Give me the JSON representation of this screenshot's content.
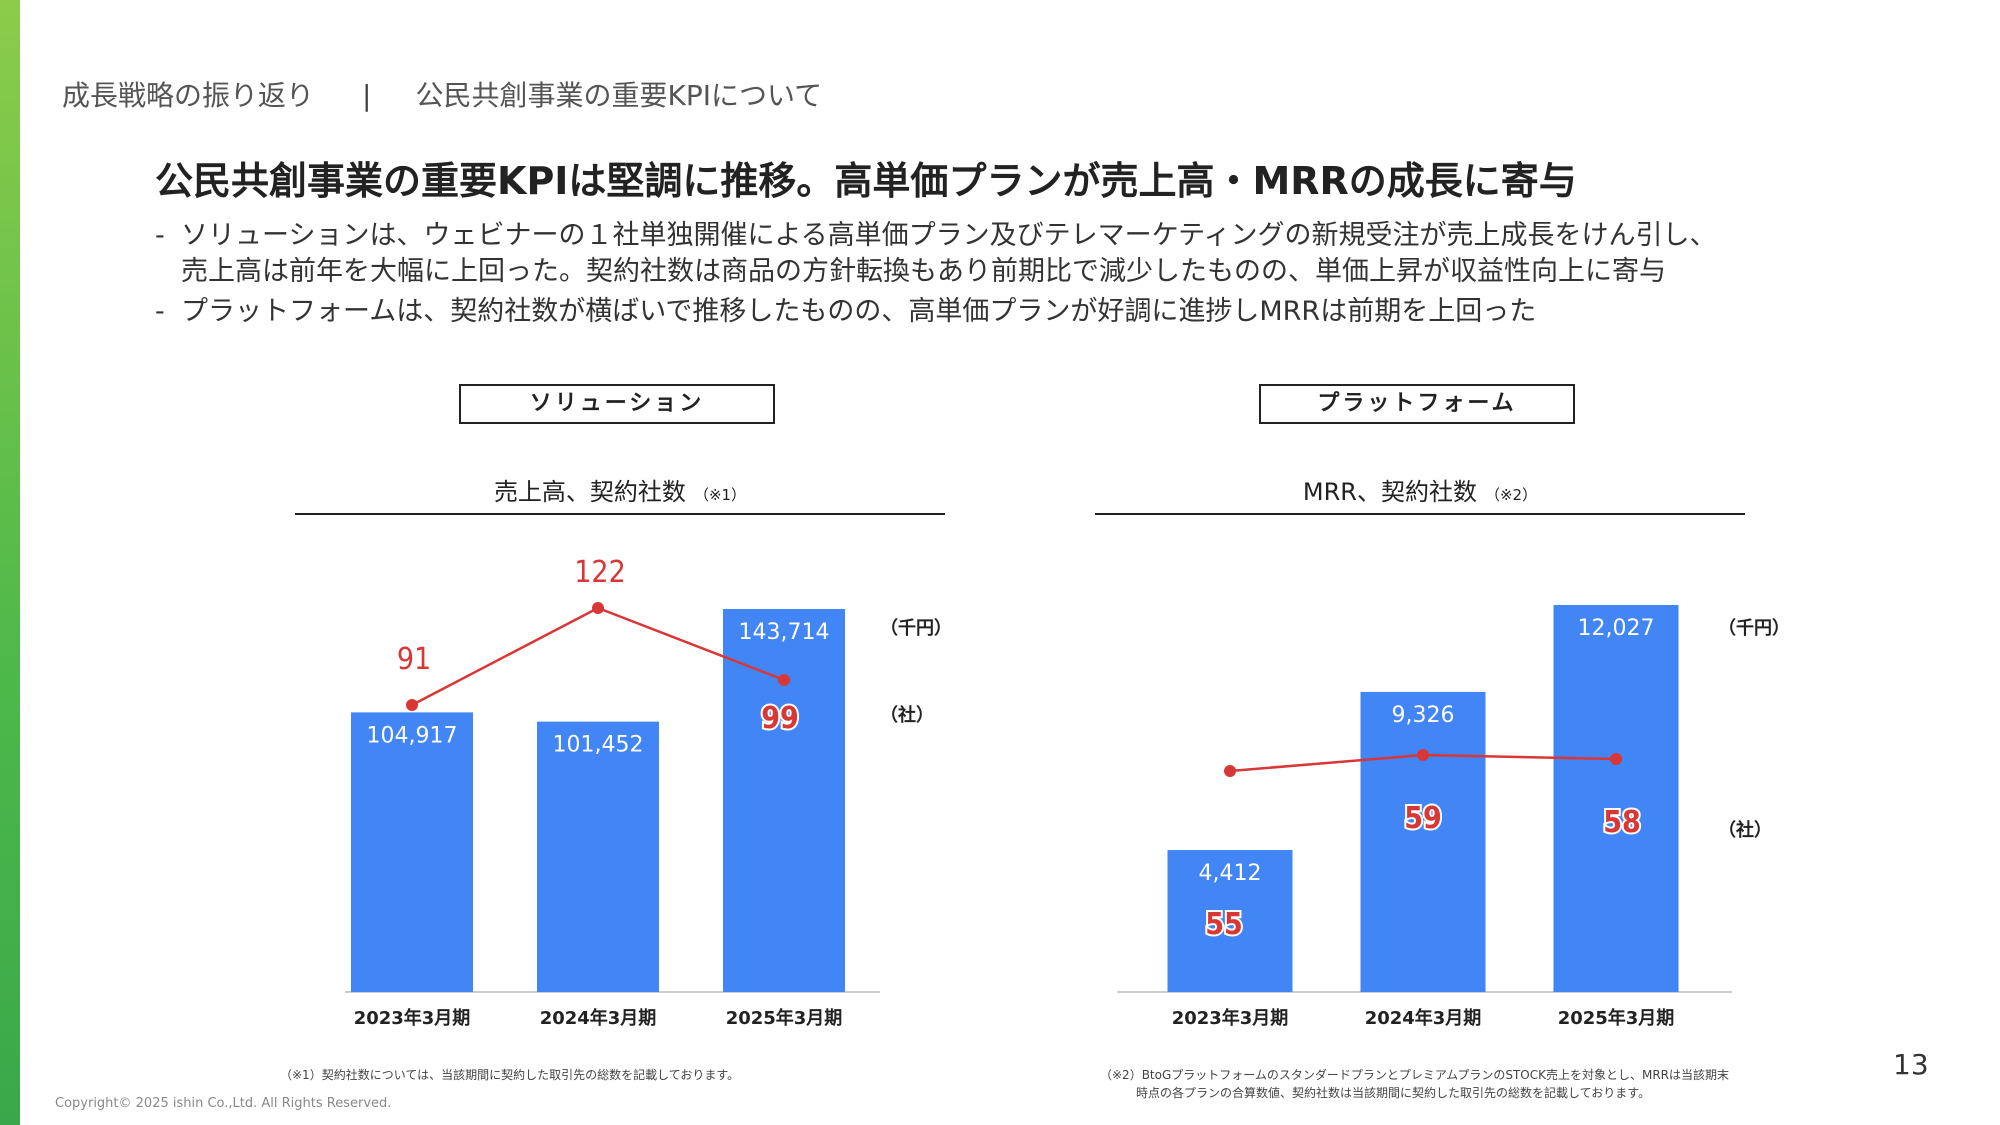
{
  "breadcrumb": {
    "section": "成長戦略の振り返り",
    "separator": "|",
    "page": "公民共創事業の重要KPIについて"
  },
  "headline": "公民共創事業の重要KPIは堅調に推移。高単価プランが売上高・MRRの成長に寄与",
  "bullets": [
    {
      "dash": "-",
      "text": "ソリューションは、ウェビナーの１社単独開催による高単価プラン及びテレマーケティングの新規受注が売上成長をけん引し、\n売上高は前年を大幅に上回った。契約社数は商品の方針転換もあり前期比で減少したものの、単価上昇が収益性向上に寄与"
    },
    {
      "dash": "-",
      "text": "プラットフォームは、契約社数が横ばいで推移したものの、高単価プランが好調に進捗しMRRは前期を上回った"
    }
  ],
  "colors": {
    "bar": "#4285f4",
    "line": "#d93636",
    "accent": "#6cc24a"
  },
  "left": {
    "section_label": "ソリューション",
    "chart_title": "売上高、契約社数",
    "chart_note": "（※1）",
    "unit_bar": "（千円）",
    "unit_line": "（社）",
    "footnote": "（※1）契約社数については、当該期間に契約した取引先の総数を記載しております。"
  },
  "right": {
    "section_label": "プラットフォーム",
    "chart_title": "MRR、契約社数",
    "chart_note": "（※2）",
    "unit_bar": "（千円）",
    "unit_line": "（社）",
    "footnote": "（※2）BtoGプラットフォームのスタンダードプランとプレミアムプランのSTOCK売上を対象とし、MRRは当該期末\n　　　時点の各プランの合算数値、契約社数は当該期間に契約した取引先の総数を記載しております。"
  },
  "chart_data": [
    {
      "type": "bar",
      "categories": [
        "2023年3月期",
        "2024年3月期",
        "2025年3月期"
      ],
      "series": [
        {
          "name": "売上高",
          "type": "bar",
          "values": [
            104917,
            101452,
            143714
          ],
          "labels": [
            "104,917",
            "101,452",
            "143,714"
          ]
        },
        {
          "name": "契約社数",
          "type": "line",
          "values": [
            91,
            122,
            99
          ],
          "labels": [
            "91",
            "122",
            "99"
          ]
        }
      ]
    },
    {
      "type": "bar",
      "categories": [
        "2023年3月期",
        "2024年3月期",
        "2025年3月期"
      ],
      "series": [
        {
          "name": "MRR",
          "type": "bar",
          "values": [
            4412,
            9326,
            12027
          ],
          "labels": [
            "4,412",
            "9,326",
            "12,027"
          ]
        },
        {
          "name": "契約社数",
          "type": "line",
          "values": [
            55,
            59,
            58
          ],
          "labels": [
            "55",
            "59",
            "58"
          ]
        }
      ]
    }
  ],
  "copyright": "Copyright©  2025 ishin Co.,Ltd. All Rights Reserved.",
  "page_number": "13"
}
